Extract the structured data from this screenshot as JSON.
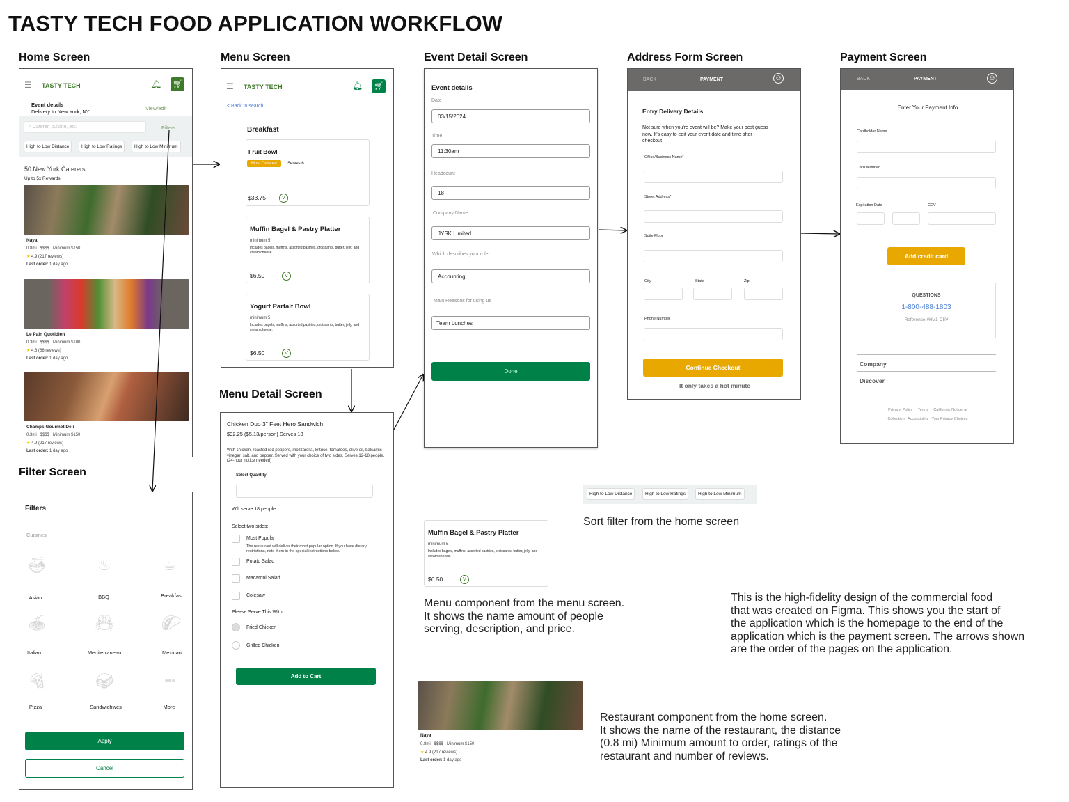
{
  "title": "TASTY TECH FOOD APPLICATION WORKFLOW",
  "colors": {
    "brand_green": "#3f7a2a",
    "button_green": "#008148",
    "accent_yellow": "#e8a800",
    "topbar_gray": "#6b6a68",
    "link_blue": "#4a7fd8"
  },
  "screens": {
    "home": {
      "label": "Home Screen",
      "brand": "TASTY TECH",
      "event_title": "Event details",
      "event_sub": "Delivery to New York, NY",
      "view_edit": "View/edit",
      "search_placeholder": "Caterer, cuisine, etc.",
      "filters": "Filters",
      "sorts": [
        "High to Low Distance",
        "High to Low Ratings",
        "High to Low Minimum"
      ],
      "count": "50 New York Caterers",
      "rewards": "Up to 5x Rewards",
      "restaurants": [
        {
          "name": "Naya",
          "meta": "0.8mi   $$$$   Minimum $150",
          "rating": "4.9 (217 reviews)",
          "last_label": "Last order:",
          "last": "1 day ago"
        },
        {
          "name": "Le Pain Quotidien",
          "meta": "0.3mi   $$$$   Minimum $100",
          "rating": "4.6 (66 reviews)",
          "last_label": "Last order:",
          "last": "1 day ago"
        },
        {
          "name": "Champs Gourmet Deli",
          "meta": "0.3mi   $$$$   Minimum $150",
          "rating": "4.9 (217 reviews)",
          "last_label": "Last order:",
          "last": "1 day ago"
        }
      ]
    },
    "menu": {
      "label": "Menu Screen",
      "brand": "TASTY TECH",
      "back": "< Back to search",
      "section": "Breakfast",
      "items": [
        {
          "name": "Fruit Bowl",
          "badge": "Most Ordered",
          "serves": "Serves 6",
          "price": "$33.75"
        },
        {
          "name": "Muffin Bagel & Pastry Platter",
          "min": "minimum 5",
          "desc": "Includes bagels, muffins, assorted pastries, croissants, butter, jelly, and cream cheese.",
          "price": "$6.50"
        },
        {
          "name": "Yogurt Parfait Bowl",
          "min": "minimum 5",
          "desc": "Includes bagels, muffins, assorted pastries, croissants, butter, jelly, and cream cheese.",
          "price": "$6.50"
        }
      ]
    },
    "menu_detail": {
      "label": "Menu Detail Screen",
      "name": "Chicken Duo 3\" Feet Hero Sandwich",
      "price": "$92.25 ($5.13/person) Serves 18",
      "desc": "With chicken, roasted red peppers, mozzarella, lettuce, tomatoes, olive oil, balsamic vinegar, salt, and pepper. Served with your choice of two sides. Serves 12-18 people. (24-hour notice needed)",
      "qty_label": "Select Quantity",
      "will_serve": "Will serve 18 people",
      "sides_label": "Select two sides:",
      "sides": [
        "Most Popular",
        "Potato Salad",
        "Macaroni Salad",
        "Colesaw"
      ],
      "most_popular_note": "The restaurant will deliver their most popular option. If you have dietary restrictions, note them in the special instructions below.",
      "serve_label": "Please Serve This With:",
      "serve_options": [
        "Fried Chicken",
        "Grilled Chicken"
      ],
      "add_to_cart": "Add to Cart"
    },
    "filter": {
      "label": "Filter Screen",
      "title": "Filters",
      "cuisines_label": "Cuisines",
      "cuisines": [
        "Asian",
        "BBQ",
        "Breakfast",
        "Italian",
        "Mediterranean",
        "Mexican",
        "Pizza",
        "Sandwichwes",
        "More"
      ],
      "apply": "Apply",
      "cancel": "Cancel"
    },
    "event": {
      "label": "Event Detail Screen",
      "title": "Event details",
      "fields": [
        {
          "label": "Date",
          "value": "03/15/2024"
        },
        {
          "label": "Time",
          "value": "11:30am"
        },
        {
          "label": "Headcount",
          "value": "18"
        },
        {
          "label": "Company Name",
          "value": "JYSK Limited"
        },
        {
          "label": "Which describes your role",
          "value": "Accounting"
        },
        {
          "label": "Main Reasons for using us",
          "value": "Team Lunches"
        }
      ],
      "done": "Done"
    },
    "address": {
      "label": "Address Form Screen",
      "back": "BACK",
      "header": "PAYMENT",
      "title": "Entry Delivery Details",
      "intro": "Not sure when you're event will be? Make your best guess now. It's easy to edit your event date and time after checkout",
      "fields": [
        "Office/Business Name*",
        "Street Address*",
        "Suite Floor",
        "City",
        "State",
        "Zip",
        "Phone Number"
      ],
      "continue": "Continue Checkout",
      "note": "It only takes a hot minute"
    },
    "payment": {
      "label": "Payment Screen",
      "back": "BACK",
      "header": "PAYMENT",
      "title": "Enter Your Payment Info",
      "fields": [
        "Cardholder Name",
        "Card Number",
        "Expiration Date",
        "CCV"
      ],
      "add_card": "Add credit card",
      "questions": "QUESTIONS",
      "phone": "1-800-488-1803",
      "reference": "Reference #HV1-C5V",
      "footer_sections": [
        "Company",
        "Discover"
      ],
      "links_row1": [
        "Privacy Policy",
        "Terms",
        "California Notice at"
      ],
      "links_row2": [
        "Collection",
        "Accessibility",
        "Your Privacy Choices"
      ]
    }
  },
  "annotations": {
    "sort": "Sort filter from the home screen",
    "menu_component": "Menu component from the menu screen.\nIt shows the name amount of people\nserving, description, and price.",
    "overview": "This is the high-fidelity design of the commercial food\nthat was created on Figma. This shows you the start of\nthe application which is the homepage to the end of the\napplication which is the payment screen. The arrows shown\nare the order of the pages on the application.",
    "restaurant_component": "Restaurant component from the home screen.\nIt shows the name of the restaurant, the distance\n(0.8 mi) Minimum amount to order, ratings of the\nrestaurant and number of reviews."
  }
}
